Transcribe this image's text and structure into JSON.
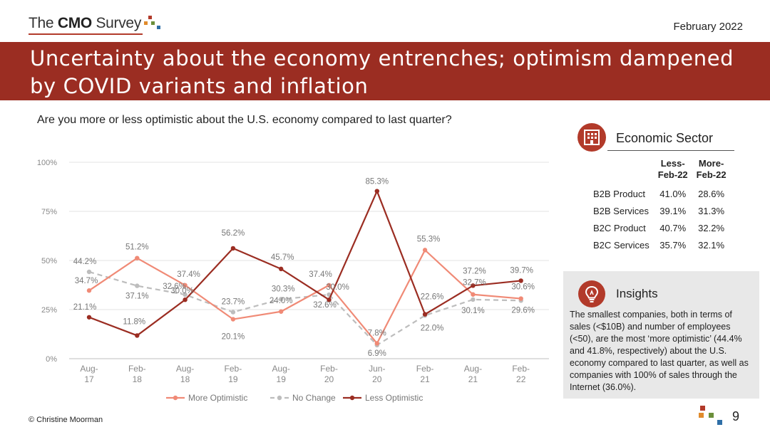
{
  "header": {
    "logo": {
      "prefix": "The ",
      "bold": "CMO",
      "suffix": " Survey"
    },
    "date": "February 2022",
    "title": "Uncertainty about the economy entrenches; optimism dampened by COVID variants and inflation"
  },
  "question": "Are you more or less optimistic about the U.S. economy compared to last quarter?",
  "chart_data": {
    "type": "line",
    "categories": [
      "Aug-17",
      "Feb-18",
      "Aug-18",
      "Feb-19",
      "Aug-19",
      "Feb-20",
      "Jun-20",
      "Feb-21",
      "Aug-21",
      "Feb-22"
    ],
    "yticks": [
      "0%",
      "25%",
      "50%",
      "75%",
      "100%"
    ],
    "ylim": [
      0,
      100
    ],
    "grid": true,
    "legend_position": "bottom",
    "series": [
      {
        "name": "More Optimistic",
        "color": "#f08a76",
        "dash": false,
        "values": [
          34.7,
          51.2,
          37.4,
          20.1,
          24.0,
          37.4,
          7.8,
          55.3,
          32.7,
          30.6
        ],
        "labels": [
          "34.7%",
          "51.2%",
          "37.4%",
          "20.1%",
          "24.0%",
          "37.4%",
          "7.8%",
          "55.3%",
          "32.7%",
          "30.6%"
        ]
      },
      {
        "name": "No Change",
        "color": "#bdbdbd",
        "dash": true,
        "values": [
          44.2,
          37.1,
          32.6,
          23.7,
          30.3,
          32.6,
          6.9,
          22.0,
          30.1,
          29.6
        ],
        "labels": [
          "44.2%",
          "37.1%",
          "32.6%",
          "23.7%",
          "30.3%",
          "32.6%",
          "6.9%",
          "22.0%",
          "30.1%",
          "29.6%"
        ]
      },
      {
        "name": "Less Optimistic",
        "color": "#9b2d22",
        "dash": false,
        "values": [
          21.1,
          11.8,
          30.0,
          56.2,
          45.7,
          30.0,
          85.3,
          22.6,
          37.2,
          39.7
        ],
        "labels": [
          "21.1%",
          "11.8%",
          "30.0%",
          "56.2%",
          "45.7%",
          "30.0%",
          "85.3%",
          "22.6%",
          "37.2%",
          "39.7%"
        ]
      }
    ]
  },
  "sector": {
    "title": "Economic Sector",
    "columns": [
      "Less-Feb-22",
      "More-Feb-22"
    ],
    "col1_line1": "Less-",
    "col1_line2": "Feb-22",
    "col2_line1": "More-",
    "col2_line2": "Feb-22",
    "rows": [
      {
        "name": "B2B Product",
        "less": "41.0%",
        "more": "28.6%"
      },
      {
        "name": "B2B Services",
        "less": "39.1%",
        "more": "31.3%"
      },
      {
        "name": "B2C Product",
        "less": "40.7%",
        "more": "32.2%"
      },
      {
        "name": "B2C Services",
        "less": "35.7%",
        "more": "32.1%"
      }
    ]
  },
  "insights": {
    "title": "Insights",
    "text": "The smallest companies, both in terms of sales (<$10B) and number of employees (<50), are the most ‘more optimistic’ (44.4% and 41.8%, respectively) about the U.S. economy compared to last quarter, as well as companies with 100% of sales through the Internet (36.0%)."
  },
  "footer": {
    "copyright": "© Christine Moorman",
    "page": "9"
  },
  "icons": [
    "building-icon",
    "lightbulb-icon"
  ],
  "colors": {
    "banner": "#9b2d22",
    "accent": "#b23a2a"
  }
}
